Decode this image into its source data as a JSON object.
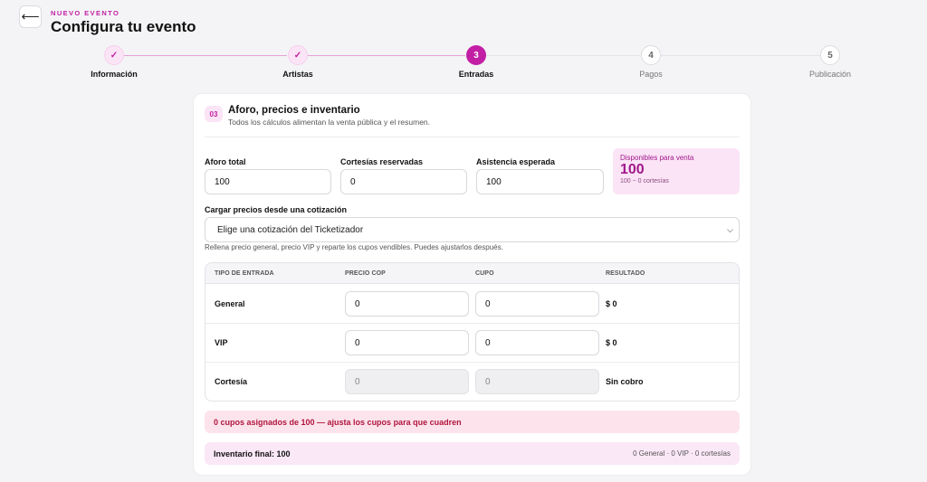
{
  "header": {
    "back_icon": "arrow-left-icon",
    "back_glyph": "⟵",
    "eyebrow": "NUEVO EVENTO",
    "title": "Configura tu evento"
  },
  "stepper": {
    "steps": [
      {
        "label": "Información",
        "marker": "✓",
        "state": "done"
      },
      {
        "label": "Artistas",
        "marker": "✓",
        "state": "done"
      },
      {
        "label": "Entradas",
        "marker": "3",
        "state": "current"
      },
      {
        "label": "Pagos",
        "marker": "4",
        "state": "pending"
      },
      {
        "label": "Publicación",
        "marker": "5",
        "state": "pending"
      }
    ]
  },
  "section": {
    "number": "03",
    "title": "Aforo, precios e inventario",
    "subtitle": "Todos los cálculos alimentan la venta pública y el resumen."
  },
  "capacity": {
    "total_label": "Aforo total",
    "total_value": "100",
    "courtesies_label": "Cortesías reservadas",
    "courtesies_value": "0",
    "attendance_label": "Asistencia esperada",
    "attendance_value": "100"
  },
  "available": {
    "label": "Disponibles para venta",
    "value": "100",
    "formula": "100 − 0 cortesías"
  },
  "quote": {
    "label": "Cargar precios desde una cotización",
    "selected": "Elige una cotización del Ticketizador",
    "help": "Rellena precio general, precio VIP y reparte los cupos vendibles. Puedes ajustarlos después."
  },
  "table": {
    "headers": [
      "TIPO DE ENTRADA",
      "PRECIO COP",
      "CUPO",
      "RESULTADO"
    ],
    "rows": [
      {
        "type": "General",
        "price": "0",
        "quota": "0",
        "result": "$ 0",
        "disabled": false
      },
      {
        "type": "VIP",
        "price": "0",
        "quota": "0",
        "result": "$ 0",
        "disabled": false
      },
      {
        "type": "Cortesía",
        "price": "0",
        "quota": "0",
        "result": "Sin cobro",
        "disabled": true
      }
    ]
  },
  "alert": {
    "text": "0 cupos asignados de 100 — ajusta los cupos para que cuadren"
  },
  "summary": {
    "left": "Inventario final: 100",
    "right": "0 General · 0 VIP · 0 cortesías"
  },
  "colors": {
    "accent": "#c21fa5",
    "accent_soft": "#fbe4f6",
    "alert_bg": "#fde4ec",
    "alert_text": "#b0153e"
  }
}
